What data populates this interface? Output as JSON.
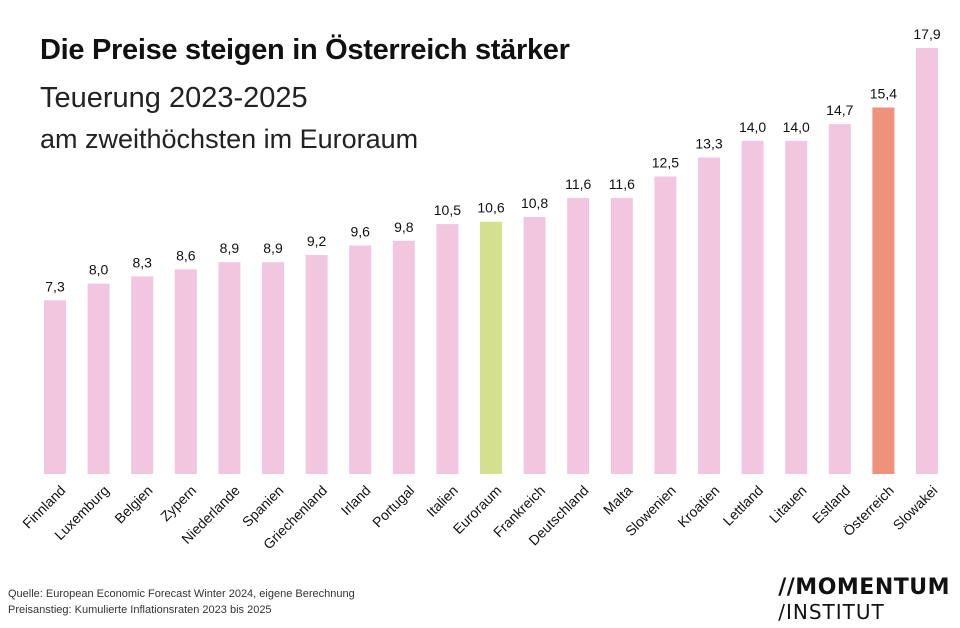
{
  "header": {
    "title": "Die Preise steigen in Österreich stärker",
    "subtitle_line1": "Teuerung 2023-2025",
    "subtitle_line2": "am zweithöchsten im Euroraum"
  },
  "footer": {
    "source": "Quelle: European Economic Forecast Winter 2024, eigene Berechnung",
    "note": "Preisanstieg: Kumulierte Inflationsraten 2023 bis 2025"
  },
  "logo": {
    "line1": "//MOMENTUM",
    "line2": "/INSTITUT"
  },
  "colors": {
    "default_bar": "#f2c6de",
    "euroraum_bar": "#d4e08f",
    "oesterreich_bar": "#ef917b"
  },
  "chart_data": {
    "type": "bar",
    "categories": [
      "Finnland",
      "Luxemburg",
      "Belgien",
      "Zypern",
      "Niederlande",
      "Spanien",
      "Griechenland",
      "Irland",
      "Portugal",
      "Italien",
      "Euroraum",
      "Frankreich",
      "Deutschland",
      "Malta",
      "Slowenien",
      "Kroatien",
      "Lettland",
      "Litauen",
      "Estland",
      "Österreich",
      "Slowakei"
    ],
    "values": [
      7.3,
      8.0,
      8.3,
      8.6,
      8.9,
      8.9,
      9.2,
      9.6,
      9.8,
      10.5,
      10.6,
      10.8,
      11.6,
      11.6,
      12.5,
      13.3,
      14.0,
      14.0,
      14.7,
      15.4,
      17.9
    ],
    "value_labels": [
      "7,3",
      "8,0",
      "8,3",
      "8,6",
      "8,9",
      "8,9",
      "9,2",
      "9,6",
      "9,8",
      "10,5",
      "10,6",
      "10,8",
      "11,6",
      "11,6",
      "12,5",
      "13,3",
      "14,0",
      "14,0",
      "14,7",
      "15,4",
      "17,9"
    ],
    "highlight": {
      "Euroraum": "euroraum_bar",
      "Österreich": "oesterreich_bar"
    },
    "ylim": [
      0,
      17.9
    ],
    "grid": false,
    "legend": "none"
  }
}
